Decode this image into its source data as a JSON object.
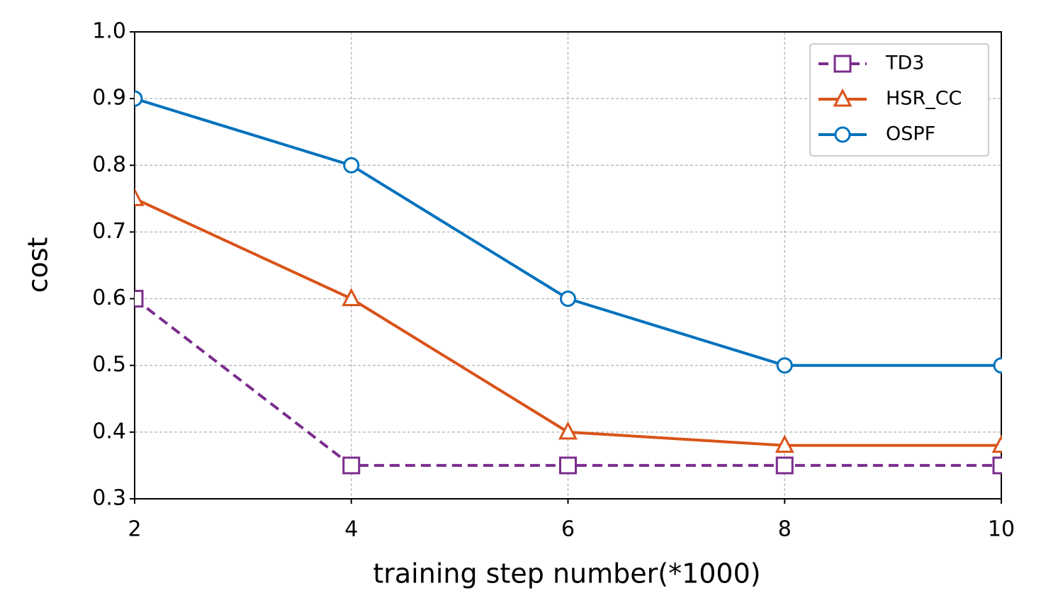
{
  "chart_data": {
    "type": "line",
    "xlabel": "training step number(*1000)",
    "ylabel": "cost",
    "x": [
      2,
      4,
      6,
      8,
      10
    ],
    "series": [
      {
        "name": "TD3",
        "color": "#7b2d8e",
        "dash": true,
        "marker": "square",
        "values": [
          0.6,
          0.35,
          0.35,
          0.35,
          0.35
        ]
      },
      {
        "name": "HSR_CC",
        "color": "#d95319",
        "dash": false,
        "marker": "triangle",
        "values": [
          0.75,
          0.6,
          0.4,
          0.38,
          0.38
        ]
      },
      {
        "name": "OSPF",
        "color": "#0072bd",
        "dash": false,
        "marker": "circle",
        "values": [
          0.9,
          0.8,
          0.6,
          0.5,
          0.5
        ]
      }
    ],
    "xlim": [
      2,
      10
    ],
    "xticks": [
      2,
      4,
      6,
      8,
      10
    ],
    "ylim": [
      0.3,
      1.0
    ],
    "yticks": [
      0.3,
      0.4,
      0.5,
      0.6,
      0.7,
      0.8,
      0.9,
      {
        "value": 1,
        "label": "1.0"
      }
    ],
    "grid": true,
    "legend": "upper right"
  }
}
